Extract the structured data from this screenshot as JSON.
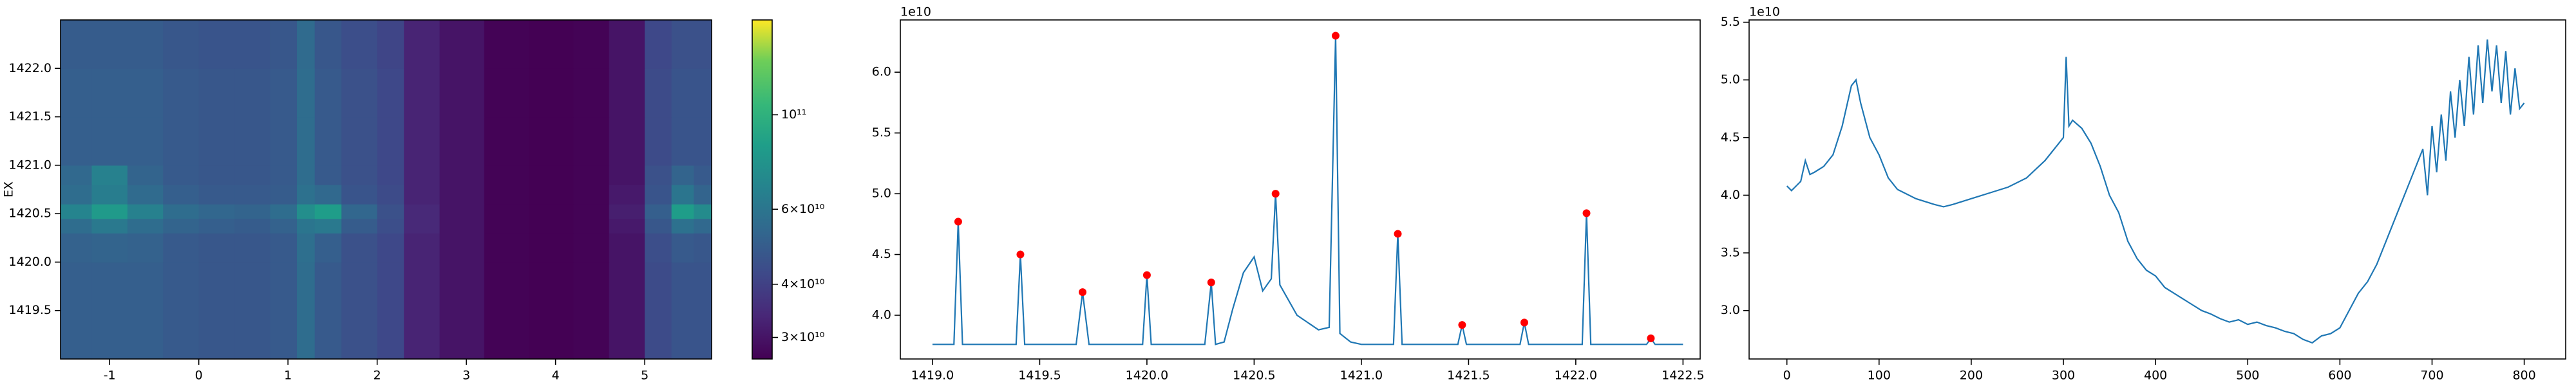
{
  "chart_data": [
    {
      "type": "heatmap",
      "ylabel": "EX",
      "colormap": "viridis",
      "xlim": [
        -1.55,
        5.75
      ],
      "ylim": [
        1419.0,
        1422.5
      ],
      "xticks": [
        -1,
        0,
        1,
        2,
        3,
        4,
        5
      ],
      "yticks": [
        1419.5,
        {
          "value": 1420.0,
          "label": "1420.0"
        },
        1420.5,
        {
          "value": 1421.0,
          "label": "1421.0"
        },
        1421.5,
        {
          "value": 1422.0,
          "label": "1422.0"
        }
      ],
      "x_edges": [
        -1.55,
        -1.2,
        -0.8,
        -0.4,
        0,
        0.4,
        0.8,
        1.1,
        1.3,
        1.6,
        2.0,
        2.3,
        2.7,
        3.2,
        3.7,
        4.2,
        4.6,
        5.0,
        5.3,
        5.55,
        5.75
      ],
      "y_edges": [
        1419.0,
        1419.5,
        1420.0,
        1420.3,
        1420.45,
        1420.6,
        1420.8,
        1421.0,
        1421.5,
        1422.0,
        1422.5
      ],
      "z": [
        [
          50000000000.0,
          50000000000.0,
          50000000000.0,
          48000000000.0,
          47000000000.0,
          47000000000.0,
          48000000000.0,
          56000000000.0,
          48000000000.0,
          45000000000.0,
          42000000000.0,
          33000000000.0,
          30000000000.0,
          27000000000.0,
          26500000000.0,
          27000000000.0,
          30000000000.0,
          43000000000.0,
          46000000000.0,
          46000000000.0
        ],
        [
          50000000000.0,
          50000000000.0,
          50000000000.0,
          48000000000.0,
          47000000000.0,
          47000000000.0,
          48000000000.0,
          56000000000.0,
          48000000000.0,
          45000000000.0,
          42000000000.0,
          33000000000.0,
          30000000000.0,
          27000000000.0,
          26500000000.0,
          27000000000.0,
          30000000000.0,
          43000000000.0,
          46000000000.0,
          46000000000.0
        ],
        [
          51000000000.0,
          52000000000.0,
          51000000000.0,
          48000000000.0,
          47000000000.0,
          47000000000.0,
          48000000000.0,
          57000000000.0,
          50000000000.0,
          45000000000.0,
          42000000000.0,
          33000000000.0,
          30000000000.0,
          27000000000.0,
          26500000000.0,
          27000000000.0,
          30000000000.0,
          44000000000.0,
          48000000000.0,
          47000000000.0
        ],
        [
          56000000000.0,
          62000000000.0,
          56000000000.0,
          52000000000.0,
          50000000000.0,
          49000000000.0,
          51000000000.0,
          60000000000.0,
          62000000000.0,
          49000000000.0,
          44000000000.0,
          34000000000.0,
          30000000000.0,
          27000000000.0,
          26500000000.0,
          27000000000.0,
          31000000000.0,
          47000000000.0,
          58000000000.0,
          54000000000.0
        ],
        [
          68000000000.0,
          82000000000.0,
          66000000000.0,
          56000000000.0,
          53000000000.0,
          52000000000.0,
          56000000000.0,
          74000000000.0,
          84000000000.0,
          53000000000.0,
          45000000000.0,
          34000000000.0,
          30000000000.0,
          27000000000.0,
          26500000000.0,
          27000000000.0,
          32000000000.0,
          50000000000.0,
          84000000000.0,
          72000000000.0
        ],
        [
          56000000000.0,
          64000000000.0,
          55000000000.0,
          50000000000.0,
          48000000000.0,
          48000000000.0,
          49000000000.0,
          58000000000.0,
          54000000000.0,
          46000000000.0,
          43000000000.0,
          33000000000.0,
          30000000000.0,
          27000000000.0,
          26500000000.0,
          27000000000.0,
          31000000000.0,
          46000000000.0,
          60000000000.0,
          52000000000.0
        ],
        [
          54000000000.0,
          66000000000.0,
          52000000000.0,
          48000000000.0,
          47000000000.0,
          47000000000.0,
          48000000000.0,
          56000000000.0,
          48000000000.0,
          45000000000.0,
          42000000000.0,
          33000000000.0,
          30000000000.0,
          27000000000.0,
          26500000000.0,
          27000000000.0,
          30000000000.0,
          45000000000.0,
          52000000000.0,
          48000000000.0
        ],
        [
          50000000000.0,
          50000000000.0,
          50000000000.0,
          48000000000.0,
          47000000000.0,
          47000000000.0,
          48000000000.0,
          56000000000.0,
          48000000000.0,
          45000000000.0,
          42000000000.0,
          33000000000.0,
          30000000000.0,
          27000000000.0,
          26500000000.0,
          27000000000.0,
          30000000000.0,
          43000000000.0,
          46000000000.0,
          46000000000.0
        ],
        [
          50000000000.0,
          50000000000.0,
          50000000000.0,
          48000000000.0,
          47000000000.0,
          47000000000.0,
          48000000000.0,
          56000000000.0,
          48000000000.0,
          45000000000.0,
          42000000000.0,
          33000000000.0,
          30000000000.0,
          27000000000.0,
          26500000000.0,
          27000000000.0,
          30000000000.0,
          43000000000.0,
          46000000000.0,
          46000000000.0
        ],
        [
          49000000000.0,
          49000000000.0,
          49000000000.0,
          47000000000.0,
          46000000000.0,
          46000000000.0,
          47000000000.0,
          55000000000.0,
          47000000000.0,
          44000000000.0,
          41000000000.0,
          33000000000.0,
          30000000000.0,
          27000000000.0,
          26500000000.0,
          27000000000.0,
          30000000000.0,
          42000000000.0,
          45000000000.0,
          45000000000.0
        ]
      ],
      "colorbar": {
        "log": true,
        "lim": [
          26700000000.0,
          167000000000.0
        ],
        "ticks": [
          {
            "value": 30000000000.0,
            "label": "3×10¹⁰"
          },
          {
            "value": 40000000000.0,
            "label": "4×10¹⁰"
          },
          {
            "value": 60000000000.0,
            "label": "6×10¹⁰"
          },
          {
            "value": 100000000000.0,
            "label": "10¹¹"
          }
        ]
      }
    },
    {
      "type": "line",
      "y_offset_label": "1e10",
      "xlim": [
        1418.85,
        1422.58
      ],
      "ylim": [
        3.64,
        6.43
      ],
      "xticks": [
        {
          "value": 1419.0,
          "label": "1419.0"
        },
        1419.5,
        {
          "value": 1420.0,
          "label": "1420.0"
        },
        1420.5,
        {
          "value": 1421.0,
          "label": "1421.0"
        },
        1421.5,
        {
          "value": 1422.0,
          "label": "1422.0"
        },
        1422.5
      ],
      "yticks": [
        {
          "value": 4.0,
          "label": "4.0"
        },
        4.5,
        {
          "value": 5.0,
          "label": "5.0"
        },
        5.5,
        {
          "value": 6.0,
          "label": "6.0"
        }
      ],
      "x": [
        1419.0,
        1419.1,
        1419.12,
        1419.14,
        1419.39,
        1419.41,
        1419.43,
        1419.67,
        1419.7,
        1419.73,
        1419.98,
        1420.0,
        1420.02,
        1420.27,
        1420.3,
        1420.32,
        1420.36,
        1420.4,
        1420.45,
        1420.5,
        1420.54,
        1420.58,
        1420.6,
        1420.62,
        1420.7,
        1420.8,
        1420.85,
        1420.88,
        1420.9,
        1420.95,
        1421.0,
        1421.15,
        1421.17,
        1421.19,
        1421.45,
        1421.47,
        1421.49,
        1421.74,
        1421.76,
        1421.78,
        1422.03,
        1422.05,
        1422.07,
        1422.33,
        1422.35,
        1422.37,
        1422.5
      ],
      "series": [
        {
          "color": "#1f77b4",
          "values": [
            3.76,
            3.76,
            4.77,
            3.76,
            3.76,
            4.5,
            3.76,
            3.76,
            4.19,
            3.76,
            3.76,
            4.33,
            3.76,
            3.76,
            4.27,
            3.76,
            3.78,
            4.05,
            4.35,
            4.48,
            4.2,
            4.3,
            5.0,
            4.25,
            4.0,
            3.88,
            3.9,
            6.3,
            3.85,
            3.78,
            3.76,
            3.76,
            4.67,
            3.76,
            3.76,
            3.92,
            3.76,
            3.76,
            3.94,
            3.76,
            3.76,
            4.84,
            3.76,
            3.76,
            3.81,
            3.76,
            3.76
          ]
        }
      ],
      "points": {
        "color": "#ff0000",
        "x": [
          1419.12,
          1419.41,
          1419.7,
          1420.0,
          1420.3,
          1420.6,
          1420.88,
          1421.17,
          1421.47,
          1421.76,
          1422.05,
          1422.35
        ],
        "values": [
          4.77,
          4.5,
          4.19,
          4.33,
          4.27,
          5.0,
          6.3,
          4.67,
          3.92,
          3.94,
          4.84,
          3.81
        ]
      }
    },
    {
      "type": "line",
      "y_offset_label": "1e10",
      "xlim": [
        -41,
        845
      ],
      "ylim": [
        2.58,
        5.52
      ],
      "xticks": [
        0,
        100,
        200,
        300,
        400,
        500,
        600,
        700,
        800
      ],
      "yticks": [
        {
          "value": 3.0,
          "label": "3.0"
        },
        3.5,
        {
          "value": 4.0,
          "label": "4.0"
        },
        4.5,
        {
          "value": 5.0,
          "label": "5.0"
        },
        5.5
      ],
      "x": [
        0,
        5,
        10,
        15,
        20,
        25,
        30,
        40,
        50,
        60,
        70,
        75,
        80,
        90,
        100,
        110,
        120,
        140,
        160,
        170,
        180,
        200,
        220,
        240,
        260,
        280,
        295,
        300,
        303,
        306,
        310,
        320,
        330,
        340,
        350,
        360,
        370,
        380,
        390,
        400,
        410,
        420,
        430,
        440,
        450,
        460,
        470,
        480,
        490,
        500,
        510,
        520,
        530,
        540,
        550,
        560,
        570,
        580,
        590,
        600,
        610,
        620,
        630,
        640,
        650,
        660,
        670,
        680,
        690,
        695,
        700,
        705,
        710,
        715,
        720,
        725,
        730,
        735,
        740,
        745,
        750,
        755,
        760,
        765,
        770,
        775,
        780,
        785,
        790,
        795,
        800
      ],
      "series": [
        {
          "color": "#1f77b4",
          "values": [
            4.08,
            4.04,
            4.08,
            4.12,
            4.3,
            4.18,
            4.2,
            4.25,
            4.35,
            4.6,
            4.95,
            5.0,
            4.8,
            4.5,
            4.35,
            4.15,
            4.05,
            3.97,
            3.92,
            3.9,
            3.92,
            3.97,
            4.02,
            4.07,
            4.15,
            4.3,
            4.45,
            4.5,
            5.2,
            4.6,
            4.65,
            4.58,
            4.45,
            4.25,
            4.0,
            3.85,
            3.6,
            3.45,
            3.35,
            3.3,
            3.2,
            3.15,
            3.1,
            3.05,
            3.0,
            2.97,
            2.93,
            2.9,
            2.92,
            2.88,
            2.9,
            2.87,
            2.85,
            2.82,
            2.8,
            2.75,
            2.72,
            2.78,
            2.8,
            2.85,
            3.0,
            3.15,
            3.25,
            3.4,
            3.6,
            3.8,
            4.0,
            4.2,
            4.4,
            4.0,
            4.6,
            4.2,
            4.7,
            4.3,
            4.9,
            4.5,
            5.0,
            4.6,
            5.2,
            4.7,
            5.3,
            4.8,
            5.35,
            4.9,
            5.3,
            4.8,
            5.25,
            4.7,
            5.1,
            4.75,
            4.8
          ]
        }
      ]
    }
  ]
}
